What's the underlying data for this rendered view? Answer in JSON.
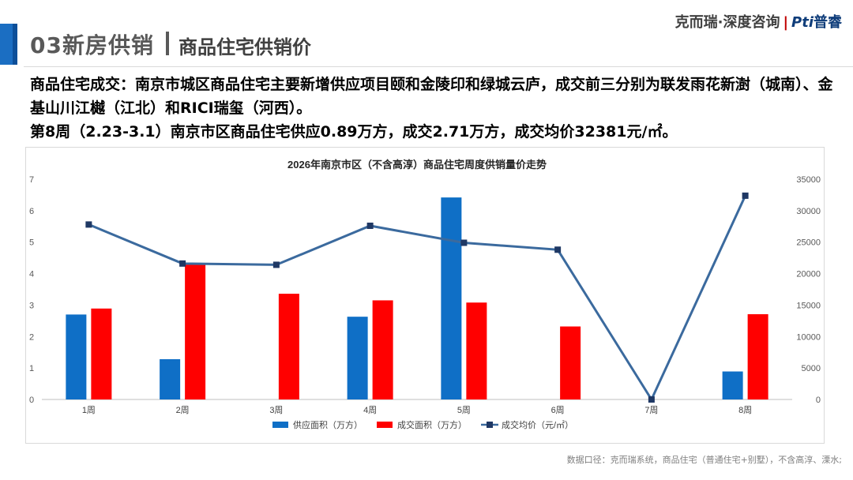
{
  "header": {
    "section_title": "03新房供销",
    "sub_title": "商品住宅供销价",
    "brand_text": "克而瑞·深度咨询",
    "brand_separator": "|",
    "brand_logo_a": "Pti",
    "brand_logo_b": "普睿"
  },
  "summary": {
    "line1": "商品住宅成交：南京市城区商品住宅主要新增供应项目颐和金陵印和绿城云庐，成交前三分别为联发雨花新澍（城南）、金基山川江樾（江北）和RICI瑞玺（河西）。",
    "line2": "第8周（2.23-3.1）南京市区商品住宅供应0.89万方，成交2.71万方，成交均价32381元/㎡。"
  },
  "chart_data": {
    "type": "bar",
    "title": "2026年南京市区（不含高淳）商品住宅周度供销量价走势",
    "categories": [
      "1周",
      "2周",
      "3周",
      "4周",
      "5周",
      "6周",
      "7周",
      "8周"
    ],
    "series": [
      {
        "name": "供应面积（万方）",
        "type": "bar",
        "axis": "left",
        "color": "#0f6fc6",
        "values": [
          2.7,
          1.28,
          0,
          2.63,
          6.42,
          0,
          0,
          0.89
        ]
      },
      {
        "name": "成交面积（万方）",
        "type": "bar",
        "axis": "left",
        "color": "#ff0000",
        "values": [
          2.89,
          4.33,
          3.36,
          3.15,
          3.08,
          2.32,
          0,
          2.71
        ]
      },
      {
        "name": "成交均价（元/㎡）",
        "type": "line",
        "axis": "right",
        "color": "#3b6a9e",
        "values": [
          27800,
          21600,
          21400,
          27600,
          24900,
          23800,
          0,
          32381
        ]
      }
    ],
    "y_left": {
      "min": 0,
      "max": 7,
      "ticks": [
        0,
        1,
        2,
        3,
        4,
        5,
        6,
        7
      ]
    },
    "y_right": {
      "min": 0,
      "max": 35000,
      "ticks": [
        0,
        5000,
        10000,
        15000,
        20000,
        25000,
        30000,
        35000
      ]
    },
    "grid": false,
    "legend_position": "bottom"
  },
  "footer": {
    "source": "数据口径：克而瑞系统，商品住宅（普通住宅+别墅），不含高淳、溧水;"
  }
}
